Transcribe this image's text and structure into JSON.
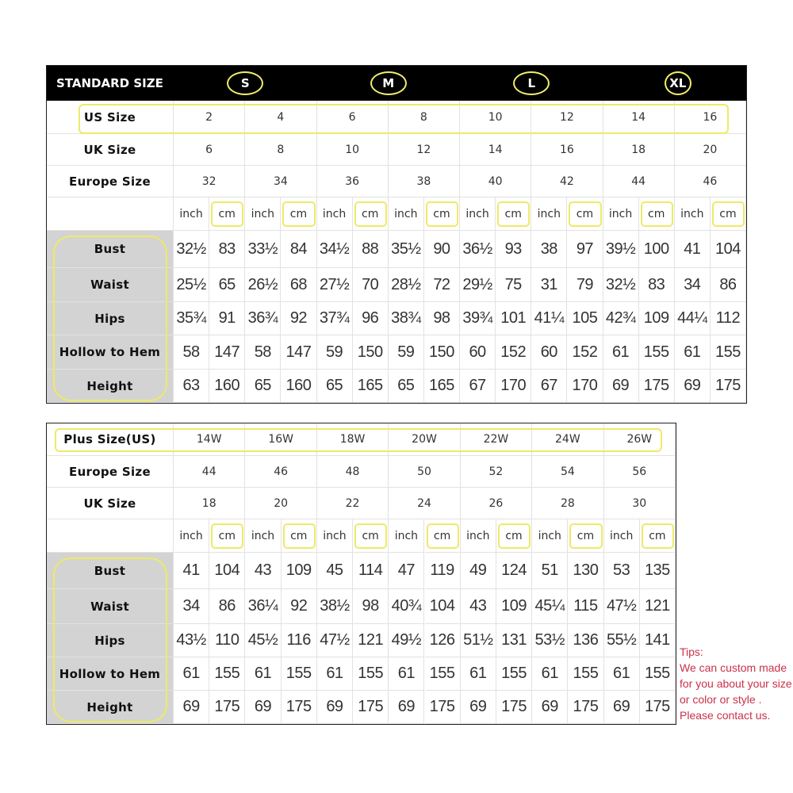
{
  "standard": {
    "title": "STANDARD SIZE",
    "letter_sizes": [
      "S",
      "M",
      "L",
      "XL"
    ],
    "rows": [
      {
        "label": "US Size",
        "values": [
          "2",
          "4",
          "6",
          "8",
          "10",
          "12",
          "14",
          "16"
        ]
      },
      {
        "label": "UK Size",
        "values": [
          "6",
          "8",
          "10",
          "12",
          "14",
          "16",
          "18",
          "20"
        ]
      },
      {
        "label": "Europe Size",
        "values": [
          "32",
          "34",
          "36",
          "38",
          "40",
          "42",
          "44",
          "46"
        ]
      }
    ],
    "units": [
      "inch",
      "cm"
    ],
    "measurements": [
      {
        "label": "Bust",
        "values": [
          "32½",
          "83",
          "33½",
          "84",
          "34½",
          "88",
          "35½",
          "90",
          "36½",
          "93",
          "38",
          "97",
          "39½",
          "100",
          "41",
          "104"
        ]
      },
      {
        "label": "Waist",
        "values": [
          "25½",
          "65",
          "26½",
          "68",
          "27½",
          "70",
          "28½",
          "72",
          "29½",
          "75",
          "31",
          "79",
          "32½",
          "83",
          "34",
          "86"
        ]
      },
      {
        "label": "Hips",
        "values": [
          "35¾",
          "91",
          "36¾",
          "92",
          "37¾",
          "96",
          "38¾",
          "98",
          "39¾",
          "101",
          "41¼",
          "105",
          "42¾",
          "109",
          "44¼",
          "112"
        ]
      },
      {
        "label": "Hollow to Hem",
        "values": [
          "58",
          "147",
          "58",
          "147",
          "59",
          "150",
          "59",
          "150",
          "60",
          "152",
          "60",
          "152",
          "61",
          "155",
          "61",
          "155"
        ]
      },
      {
        "label": "Height",
        "values": [
          "63",
          "160",
          "65",
          "160",
          "65",
          "165",
          "65",
          "165",
          "67",
          "170",
          "67",
          "170",
          "69",
          "175",
          "69",
          "175"
        ]
      }
    ]
  },
  "plus": {
    "rows": [
      {
        "label": "Plus Size(US)",
        "values": [
          "14W",
          "16W",
          "18W",
          "20W",
          "22W",
          "24W",
          "26W"
        ]
      },
      {
        "label": "Europe Size",
        "values": [
          "44",
          "46",
          "48",
          "50",
          "52",
          "54",
          "56"
        ]
      },
      {
        "label": "UK Size",
        "values": [
          "18",
          "20",
          "22",
          "24",
          "26",
          "28",
          "30"
        ]
      }
    ],
    "units": [
      "inch",
      "cm"
    ],
    "measurements": [
      {
        "label": "Bust",
        "values": [
          "41",
          "104",
          "43",
          "109",
          "45",
          "114",
          "47",
          "119",
          "49",
          "124",
          "51",
          "130",
          "53",
          "135"
        ]
      },
      {
        "label": "Waist",
        "values": [
          "34",
          "86",
          "36¼",
          "92",
          "38½",
          "98",
          "40¾",
          "104",
          "43",
          "109",
          "45¼",
          "115",
          "47½",
          "121"
        ]
      },
      {
        "label": "Hips",
        "values": [
          "43½",
          "110",
          "45½",
          "116",
          "47½",
          "121",
          "49½",
          "126",
          "51½",
          "131",
          "53½",
          "136",
          "55½",
          "141"
        ]
      },
      {
        "label": "Hollow to Hem",
        "values": [
          "61",
          "155",
          "61",
          "155",
          "61",
          "155",
          "61",
          "155",
          "61",
          "155",
          "61",
          "155",
          "61",
          "155"
        ]
      },
      {
        "label": "Height",
        "values": [
          "69",
          "175",
          "69",
          "175",
          "69",
          "175",
          "69",
          "175",
          "69",
          "175",
          "69",
          "175",
          "69",
          "175"
        ]
      }
    ]
  },
  "tips": {
    "title": "Tips:",
    "lines": [
      "We can custom made",
      "for you about your size",
      "or color or style .",
      "Please contact us."
    ]
  },
  "colors": {
    "highlight": "#eeea66",
    "header_bg": "#000000",
    "label_bg": "#d3d3d3",
    "tips": "#c8324a"
  }
}
